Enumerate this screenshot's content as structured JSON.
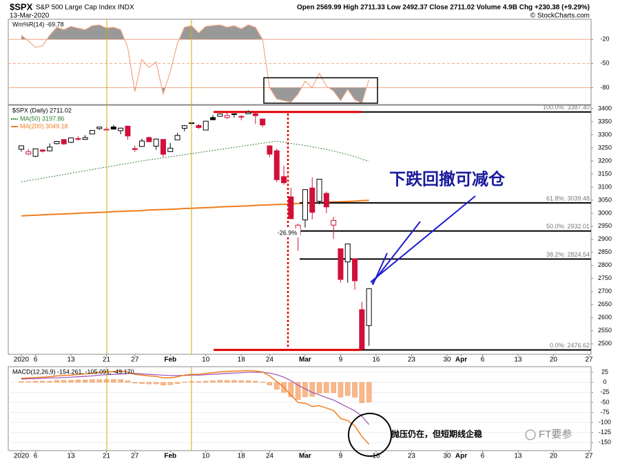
{
  "header": {
    "symbol": "$SPX",
    "description": "S&P 500 Large Cap Index INDX",
    "date": "13-Mar-2020",
    "quote": "Open 2569.99 High 2711.33 Low 2492.37 Close 2711.02 Volume 4.9B Chg +230.38 (+9.29%)",
    "source": "© StockCharts.com"
  },
  "x_axis": {
    "xlim": [
      -1.84,
      80.3
    ],
    "xticks": [
      {
        "value": 0,
        "label": "2020"
      },
      {
        "value": 2,
        "label": "6"
      },
      {
        "value": 7,
        "label": "13"
      },
      {
        "value": 12,
        "label": "21"
      },
      {
        "value": 16,
        "label": "27"
      },
      {
        "value": 21,
        "label": "Feb"
      },
      {
        "value": 26,
        "label": "10"
      },
      {
        "value": 31,
        "label": "18"
      },
      {
        "value": 35,
        "label": "24"
      },
      {
        "value": 40,
        "label": "Mar"
      },
      {
        "value": 45,
        "label": "9"
      },
      {
        "value": 50,
        "label": "16"
      },
      {
        "value": 55,
        "label": "23"
      },
      {
        "value": 60,
        "label": "30"
      },
      {
        "value": 62,
        "label": "Apr"
      },
      {
        "value": 65,
        "label": "6"
      },
      {
        "value": 70,
        "label": "13"
      },
      {
        "value": 75,
        "label": "20"
      },
      {
        "value": 80,
        "label": "27"
      }
    ]
  },
  "chart_data": [
    {
      "type": "williams_r",
      "label": "Wm%R(14) -69.78",
      "color": "#f4a582",
      "fill_color": "#999999",
      "ylim": [
        -101,
        5
      ],
      "yticks": [
        -20,
        -50,
        -80
      ],
      "values": [
        -15,
        -22,
        -30,
        -28,
        -15,
        -5,
        -8,
        -4,
        -6,
        -8,
        -3,
        -2,
        -6,
        -5,
        -8,
        -30,
        -85,
        -45,
        -55,
        -48,
        -88,
        -60,
        -25,
        -5,
        -3,
        -12,
        -4,
        -3,
        -2,
        -5,
        -3,
        -7,
        -2,
        -5,
        -20,
        -80,
        -94,
        -96,
        -98,
        -88,
        -72,
        -80,
        -62,
        -78,
        -84,
        -96,
        -82,
        -95,
        -99,
        -69.78
      ]
    },
    {
      "type": "candlestick",
      "label": "$SPX (Daily) 2711.02",
      "up_color": "#000000",
      "down_color": "#d0103a",
      "ylim": [
        2460,
        3413
      ],
      "yticks": [
        2500,
        2550,
        2600,
        2650,
        2700,
        2750,
        2800,
        2850,
        2900,
        2950,
        3000,
        3050,
        3100,
        3150,
        3200,
        3250,
        3300,
        3350,
        3400
      ],
      "open": [
        3244.67,
        3226.36,
        3217.55,
        3241.86,
        3238.59,
        3266.03,
        3281.81,
        3271.13,
        3285.35,
        3282.27,
        3302.97,
        3323.66,
        3321.03,
        3330.02,
        3315.77,
        3333.1,
        3247.16,
        3255.35,
        3289.46,
        3256.45,
        3282.33,
        3235.66,
        3280.61,
        3324.91,
        3344.92,
        3335.54,
        3318.28,
        3365.87,
        3370.5,
        3365.9,
        3378.08,
        3369.04,
        3380.39,
        3380.45,
        3360.5,
        3257.61,
        3238.94,
        3139.9,
        3062.54,
        2916.9,
        2974.28,
        3096.46,
        3045.75,
        3075.7,
        2954.2,
        2863.89,
        2813.48,
        2825.6,
        2630.86,
        2569.99
      ],
      "high": [
        3258.14,
        3246.15,
        3246.84,
        3244.91,
        3267.07,
        3275.58,
        3282.99,
        3288.13,
        3294.25,
        3298.66,
        3317.11,
        3329.88,
        3329.79,
        3337.77,
        3326.88,
        3333.18,
        3258.85,
        3285.78,
        3293.47,
        3285.91,
        3282.33,
        3268.44,
        3306.92,
        3337.58,
        3347.96,
        3341.42,
        3352.26,
        3375.63,
        3381.47,
        3385.09,
        3380.69,
        3375.01,
        3393.52,
        3389.15,
        3360.76,
        3259.81,
        3246.99,
        3182.51,
        3097.07,
        2959.72,
        3090.96,
        3136.72,
        3130.97,
        3083.04,
        2985.93,
        2863.89,
        2882.59,
        2825.6,
        2660.95,
        2711.33
      ],
      "low": [
        3235.53,
        3222.34,
        3214.64,
        3232.43,
        3236.67,
        3263.67,
        3260.86,
        3268.43,
        3277.19,
        3280.69,
        3302.82,
        3318.86,
        3316.61,
        3320.04,
        3301.87,
        3281.53,
        3234.5,
        3253.22,
        3271.89,
        3242.8,
        3214.68,
        3235.66,
        3280.61,
        3313.75,
        3334.39,
        3322.12,
        3317.77,
        3355.61,
        3369.72,
        3360.52,
        3366.15,
        3355.61,
        3378.83,
        3341.02,
        3328.45,
        3214.65,
        3118.77,
        3108.99,
        2977.39,
        2855.84,
        2945.19,
        2976.63,
        3034.38,
        2999.83,
        2901.54,
        2734.43,
        2734,
        2707.22,
        2478.86,
        2492.37
      ],
      "close": [
        3257.85,
        3234.85,
        3246.28,
        3237.18,
        3253.05,
        3274.7,
        3265.35,
        3288.13,
        3283.15,
        3289.29,
        3316.81,
        3329.62,
        3320.79,
        3321.75,
        3325.54,
        3295.47,
        3243.63,
        3276.24,
        3273.4,
        3283.66,
        3225.52,
        3248.92,
        3297.59,
        3334.69,
        3345.78,
        3327.71,
        3352.09,
        3357.75,
        3379.45,
        3373.94,
        3380.16,
        3370.29,
        3386.15,
        3373.23,
        3337.75,
        3225.89,
        3128.21,
        3116.39,
        2978.76,
        2954.22,
        3090.23,
        3003.37,
        3130.12,
        3023.94,
        2972.37,
        2746.56,
        2882.23,
        2741.38,
        2480.64,
        2711.02
      ],
      "series": [
        {
          "name": "MA(50) 3197.86",
          "color": "#2e7d32",
          "dash": true,
          "values": [
            3120,
            3125,
            3129,
            3134,
            3139,
            3143,
            3148,
            3153,
            3158,
            3162,
            3167,
            3172,
            3176,
            3181,
            3186,
            3190,
            3195,
            3200,
            3204,
            3208,
            3212,
            3216,
            3220,
            3224,
            3228,
            3232,
            3236,
            3240,
            3244,
            3248,
            3252,
            3256,
            3260,
            3264,
            3268,
            3272,
            3276,
            3271,
            3267,
            3263,
            3259,
            3254,
            3249,
            3244,
            3238,
            3231,
            3224,
            3216,
            3207,
            3197.86
          ]
        },
        {
          "name": "MA(200) 3049.18",
          "color": "#f07c1e",
          "dash": false,
          "values": [
            2990,
            2991,
            2992,
            2994,
            2995,
            2996,
            2997,
            2998,
            3000,
            3001,
            3002,
            3003,
            3004,
            3006,
            3007,
            3008,
            3009,
            3010,
            3012,
            3013,
            3014,
            3015,
            3016,
            3018,
            3019,
            3020,
            3021,
            3022,
            3024,
            3025,
            3026,
            3027,
            3028,
            3030,
            3031,
            3032,
            3033,
            3034,
            3036,
            3037,
            3038,
            3039,
            3040,
            3042,
            3043,
            3044,
            3045,
            3046,
            3048,
            3049.18
          ]
        }
      ],
      "fibonacci": [
        {
          "value": 3387.4,
          "label": "100.0%: 3387.40"
        },
        {
          "value": 3039.48,
          "label": "61.8%: 3039.48"
        },
        {
          "value": 2932.01,
          "label": "50.0%: 2932.01"
        },
        {
          "value": 2824.54,
          "label": "38.2%: 2824.54"
        },
        {
          "value": 2476.62,
          "label": "0.0%: 2476.62"
        }
      ]
    },
    {
      "type": "macd",
      "label": "MACD(12,26,9) -154.261, -105.091, -49.170",
      "macd_color": "#f07c1e",
      "signal_color": "#9b4fb5",
      "histogram_color": "#f8b88b",
      "ylim": [
        -170,
        39
      ],
      "yticks": [
        25,
        0,
        -25,
        -50,
        -75,
        -100,
        -125,
        -150
      ],
      "macd": [
        10,
        11,
        12,
        13,
        14,
        16,
        17,
        18,
        20,
        21,
        23,
        25,
        26,
        27,
        28,
        26,
        20,
        18,
        16,
        15,
        11,
        11,
        14,
        18,
        20,
        20,
        22,
        24,
        26,
        27,
        28,
        28,
        29,
        28,
        26,
        16,
        2,
        -12,
        -32,
        -50,
        -52,
        -60,
        -58,
        -64,
        -70,
        -90,
        -95,
        -108,
        -135,
        -154.261
      ],
      "signal": [
        8,
        9,
        9,
        10,
        11,
        11,
        12,
        13,
        14,
        15,
        16,
        18,
        19,
        20,
        21,
        22,
        22,
        21,
        20,
        19,
        18,
        17,
        17,
        17,
        18,
        18,
        19,
        20,
        21,
        22,
        23,
        24,
        25,
        25,
        25,
        23,
        19,
        13,
        4,
        -7,
        -16,
        -25,
        -31,
        -38,
        -44,
        -53,
        -62,
        -71,
        -84,
        -105.091
      ],
      "histogram": [
        2,
        2,
        3,
        3,
        3,
        5,
        5,
        5,
        6,
        6,
        7,
        7,
        7,
        7,
        7,
        4,
        -2,
        -3,
        -4,
        -4,
        -7,
        -6,
        -3,
        1,
        2,
        2,
        3,
        4,
        5,
        5,
        5,
        4,
        4,
        3,
        1,
        -7,
        -17,
        -25,
        -36,
        -43,
        -36,
        -35,
        -27,
        -26,
        -26,
        -37,
        -33,
        -37,
        -51,
        -49.17
      ]
    }
  ],
  "annotations": {
    "callout": "下跌回撤可减仓",
    "drawdown": "-26.9%",
    "macd_note": "抛压仍在，但短期线企稳",
    "watermark": "FT要参"
  }
}
